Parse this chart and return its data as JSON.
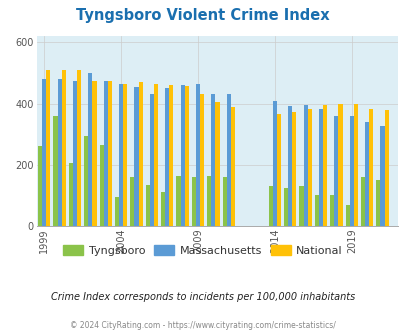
{
  "title": "Tyngsboro Violent Crime Index",
  "title_color": "#1a6faf",
  "background_color": "#ddeef5",
  "fig_background": "#ffffff",
  "years": [
    1999,
    2000,
    2001,
    2002,
    2003,
    2004,
    2005,
    2006,
    2007,
    2008,
    2009,
    2010,
    2011,
    2014,
    2015,
    2016,
    2017,
    2018,
    2019,
    2020,
    2021
  ],
  "tyngsboro": [
    260,
    360,
    205,
    295,
    265,
    95,
    160,
    135,
    110,
    165,
    160,
    165,
    160,
    130,
    125,
    130,
    100,
    100,
    70,
    160,
    150
  ],
  "massachusetts": [
    480,
    480,
    475,
    500,
    475,
    465,
    455,
    430,
    450,
    462,
    465,
    430,
    430,
    407,
    392,
    395,
    382,
    360,
    358,
    340,
    328
  ],
  "national": [
    510,
    510,
    510,
    475,
    475,
    465,
    470,
    465,
    462,
    458,
    430,
    405,
    390,
    366,
    374,
    382,
    396,
    400,
    398,
    383,
    379
  ],
  "tyngsboro_color": "#8bc34a",
  "massachusetts_color": "#5b9bd5",
  "national_color": "#ffc107",
  "tick_color": "#555555",
  "xlabel_ticks": [
    1999,
    2004,
    2009,
    2014,
    2019
  ],
  "ylim": [
    0,
    620
  ],
  "yticks": [
    0,
    200,
    400,
    600
  ],
  "subtitle": "Crime Index corresponds to incidents per 100,000 inhabitants",
  "footer": "© 2024 CityRating.com - https://www.cityrating.com/crime-statistics/",
  "subtitle_color": "#222222",
  "footer_color": "#888888",
  "grid_color": "#cccccc",
  "legend_text_color": "#333333"
}
